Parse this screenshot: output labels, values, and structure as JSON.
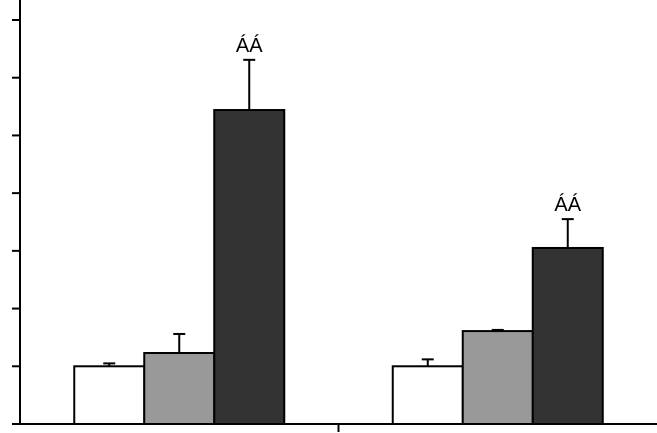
{
  "chart_data": {
    "type": "bar",
    "categories": [
      null,
      null
    ],
    "series": [
      {
        "color": "#ffffff",
        "values": [
          1.0,
          1.0
        ],
        "errors": [
          0.05,
          0.12
        ]
      },
      {
        "color": "#999999",
        "values": [
          1.23,
          1.61
        ],
        "errors": [
          0.33,
          0.02
        ]
      },
      {
        "color": "#333333",
        "values": [
          5.44,
          3.05
        ],
        "errors": [
          0.87,
          0.5
        ],
        "annotations": [
          "ÁÁ",
          "ÁÁ"
        ]
      }
    ],
    "ylim": [
      0,
      7
    ],
    "yticks": [
      0,
      1,
      2,
      3,
      4,
      5,
      6,
      7
    ]
  }
}
